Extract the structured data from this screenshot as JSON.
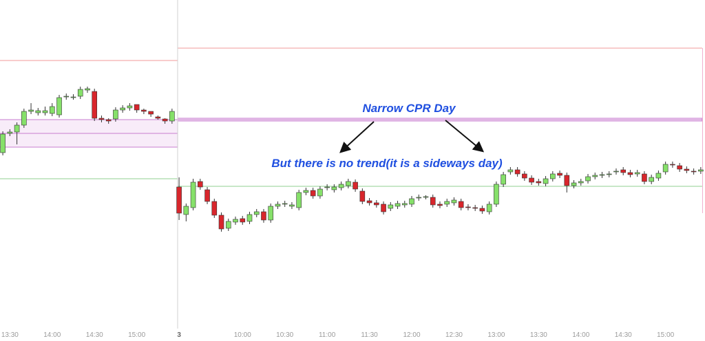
{
  "chart_data": {
    "type": "candlestick",
    "xlim": [
      -25.4,
      74.6
    ],
    "ylim": [
      4,
      500
    ],
    "xticks": [
      {
        "value": -24,
        "label": "13:30"
      },
      {
        "value": -18,
        "label": "14:00"
      },
      {
        "value": -12,
        "label": "14:30"
      },
      {
        "value": -6,
        "label": "15:00"
      },
      {
        "value": 0,
        "label": "3"
      },
      {
        "value": 9,
        "label": "10:00"
      },
      {
        "value": 15,
        "label": "10:30"
      },
      {
        "value": 21,
        "label": "11:00"
      },
      {
        "value": 27,
        "label": "11:30"
      },
      {
        "value": 33,
        "label": "12:00"
      },
      {
        "value": 39,
        "label": "12:30"
      },
      {
        "value": 45,
        "label": "13:00"
      },
      {
        "value": 51,
        "label": "13:30"
      },
      {
        "value": 57,
        "label": "14:00"
      },
      {
        "value": 63,
        "label": "14:30"
      },
      {
        "value": 69,
        "label": "15:00"
      }
    ],
    "up_color": "#86e06a",
    "down_color": "#d8262c",
    "x": [
      -25,
      -24,
      -23,
      -22,
      -21,
      -20,
      -19,
      -18,
      -17,
      -16,
      -15,
      -14,
      -13,
      -12,
      -11,
      -10,
      -9,
      -8,
      -7,
      -6,
      -5,
      -4,
      -3,
      -2,
      -1,
      0,
      1,
      2,
      3,
      4,
      5,
      6,
      7,
      8,
      9,
      10,
      11,
      12,
      13,
      14,
      15,
      16,
      17,
      18,
      19,
      20,
      21,
      22,
      23,
      24,
      25,
      26,
      27,
      28,
      29,
      30,
      31,
      32,
      33,
      34,
      35,
      36,
      37,
      38,
      39,
      40,
      41,
      42,
      43,
      44,
      45,
      46,
      47,
      48,
      49,
      50,
      51,
      52,
      53,
      54,
      55,
      56,
      57,
      58,
      59,
      60,
      61,
      62,
      63,
      64,
      65,
      66,
      67,
      68,
      69,
      70,
      71,
      72,
      73,
      74
    ],
    "open": [
      278,
      306,
      308,
      318,
      338,
      336,
      336,
      335,
      333,
      359,
      359,
      360,
      369,
      367,
      328,
      326,
      327,
      340,
      343,
      348,
      340,
      338,
      330,
      327,
      324,
      228,
      188,
      198,
      236,
      224,
      207,
      187,
      168,
      177,
      182,
      178,
      188,
      192,
      180,
      200,
      203,
      200,
      198,
      220,
      223,
      215,
      227,
      224,
      227,
      230,
      235,
      222,
      208,
      205,
      203,
      197,
      200,
      202,
      203,
      212,
      213,
      213,
      203,
      203,
      205,
      207,
      199,
      198,
      197,
      192,
      203,
      232,
      250,
      253,
      247,
      241,
      236,
      233,
      240,
      248,
      245,
      230,
      234,
      237,
      243,
      245,
      246,
      250,
      253,
      249,
      247,
      247,
      236,
      241,
      250,
      261,
      259,
      254,
      251,
      251
    ],
    "high": [
      309,
      312,
      322,
      342,
      350,
      343,
      345,
      350,
      362,
      364,
      363,
      374,
      374,
      371,
      332,
      328,
      344,
      347,
      350,
      344,
      342,
      338,
      332,
      328,
      342,
      242,
      204,
      240,
      240,
      228,
      211,
      191,
      182,
      185,
      186,
      192,
      196,
      196,
      204,
      207,
      208,
      206,
      224,
      227,
      227,
      229,
      232,
      232,
      236,
      240,
      239,
      226,
      212,
      209,
      207,
      206,
      208,
      208,
      215,
      217,
      216,
      217,
      207,
      211,
      213,
      211,
      203,
      202,
      201,
      207,
      236,
      250,
      257,
      257,
      251,
      245,
      240,
      244,
      251,
      252,
      249,
      238,
      240,
      247,
      249,
      250,
      251,
      255,
      257,
      253,
      253,
      251,
      246,
      252,
      265,
      265,
      263,
      258,
      255,
      257
    ],
    "low": [
      274,
      302,
      290,
      314,
      334,
      332,
      332,
      331,
      329,
      355,
      355,
      356,
      365,
      324,
      322,
      320,
      323,
      336,
      339,
      336,
      334,
      330,
      326,
      320,
      320,
      180,
      178,
      194,
      224,
      203,
      183,
      163,
      164,
      173,
      173,
      174,
      184,
      176,
      176,
      196,
      199,
      196,
      194,
      216,
      211,
      211,
      223,
      220,
      223,
      226,
      221,
      203,
      201,
      198,
      188,
      193,
      196,
      198,
      199,
      208,
      210,
      198,
      197,
      199,
      201,
      194,
      194,
      193,
      189,
      188,
      199,
      228,
      246,
      243,
      237,
      231,
      230,
      229,
      236,
      241,
      220,
      226,
      230,
      233,
      239,
      241,
      242,
      246,
      245,
      242,
      243,
      232,
      232,
      237,
      246,
      256,
      250,
      248,
      246,
      247
    ],
    "close": [
      305,
      308,
      318,
      338,
      340,
      339,
      339,
      345,
      358,
      360,
      359,
      370,
      371,
      328,
      326,
      324,
      340,
      343,
      346,
      340,
      338,
      334,
      328,
      324,
      338,
      190,
      200,
      235,
      228,
      207,
      187,
      167,
      178,
      181,
      177,
      188,
      192,
      180,
      200,
      203,
      204,
      202,
      220,
      223,
      215,
      225,
      228,
      228,
      232,
      236,
      225,
      207,
      205,
      202,
      192,
      202,
      204,
      204,
      211,
      213,
      214,
      202,
      201,
      207,
      209,
      198,
      198,
      197,
      193,
      203,
      232,
      246,
      253,
      247,
      241,
      235,
      234,
      240,
      247,
      245,
      230,
      234,
      236,
      243,
      245,
      246,
      247,
      251,
      249,
      246,
      249,
      236,
      242,
      248,
      261,
      260,
      254,
      252,
      250,
      253
    ],
    "resistance_color": "#f19a9a",
    "support_color": "#8fcf8f",
    "cpr_color": "#c77dd0",
    "cpr_fill": "#f8ecf9",
    "resistance": [
      {
        "value": 412,
        "x": [
          -26,
          -0.2
        ]
      },
      {
        "value": 430,
        "x": [
          -0.2,
          74.2
        ]
      }
    ],
    "support": [
      {
        "value": 240,
        "x": [
          -26,
          -0.2
        ]
      },
      {
        "value": 229,
        "x": [
          -0.2,
          74.2
        ]
      }
    ],
    "cpr": [
      {
        "top": 326,
        "pivot": 306,
        "bottom": 286,
        "x": [
          -26,
          -0.2
        ]
      },
      {
        "top": 328,
        "pivot": 326,
        "bottom": 324,
        "x": [
          -0.2,
          74.2
        ]
      }
    ],
    "annotations": [
      "Narrow CPR Day",
      "But there is no trend(it is a sideways day)"
    ]
  }
}
